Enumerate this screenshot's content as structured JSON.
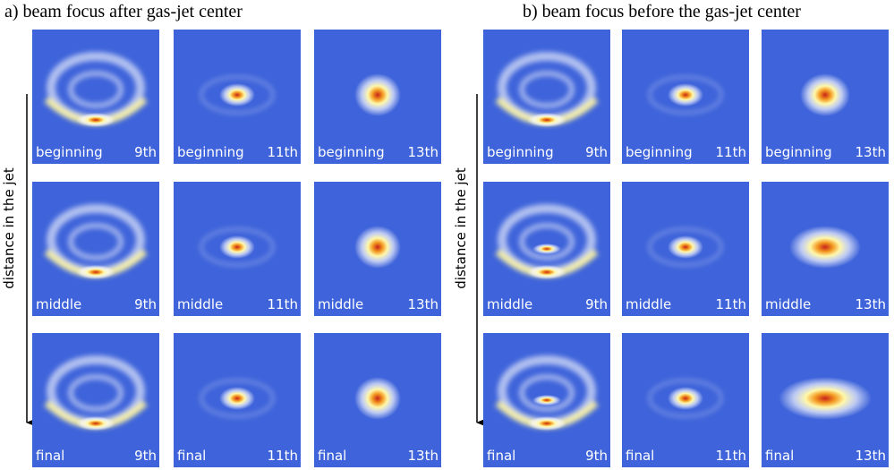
{
  "panels": [
    {
      "title": "a) beam focus after gas-jet center",
      "axis_label": "distance in the jet",
      "cells": [
        [
          {
            "stage": "beginning",
            "order": "9th"
          },
          {
            "stage": "beginning",
            "order": "11th"
          },
          {
            "stage": "beginning",
            "order": "13th"
          }
        ],
        [
          {
            "stage": "middle",
            "order": "9th"
          },
          {
            "stage": "middle",
            "order": "11th"
          },
          {
            "stage": "middle",
            "order": "13th"
          }
        ],
        [
          {
            "stage": "final",
            "order": "9th"
          },
          {
            "stage": "final",
            "order": "11th"
          },
          {
            "stage": "final",
            "order": "13th"
          }
        ]
      ]
    },
    {
      "title": "b) beam focus before the gas-jet center",
      "axis_label": "distance in the jet",
      "cells": [
        [
          {
            "stage": "beginning",
            "order": "9th"
          },
          {
            "stage": "beginning",
            "order": "11th"
          },
          {
            "stage": "beginning",
            "order": "13th"
          }
        ],
        [
          {
            "stage": "middle",
            "order": "9th"
          },
          {
            "stage": "middle",
            "order": "11th"
          },
          {
            "stage": "middle",
            "order": "13th"
          }
        ],
        [
          {
            "stage": "final",
            "order": "9th"
          },
          {
            "stage": "final",
            "order": "11th"
          },
          {
            "stage": "final",
            "order": "13th"
          }
        ]
      ]
    }
  ]
}
